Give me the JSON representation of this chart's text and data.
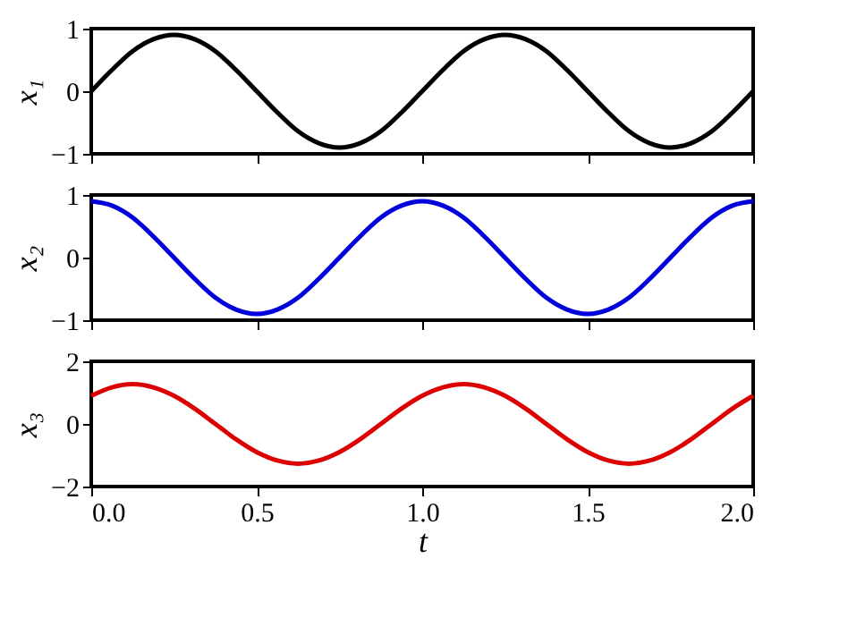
{
  "chart_data": [
    {
      "type": "line",
      "ylabel": "x₁",
      "xlim": [
        0,
        2
      ],
      "xticks": [
        0,
        0.5,
        1,
        1.5,
        2
      ],
      "ylim": [
        -1,
        1
      ],
      "yticks": [
        -1,
        0,
        1
      ],
      "tick_labels": "y",
      "grid": false,
      "x": [
        0,
        0.0625,
        0.125,
        0.1875,
        0.25,
        0.3125,
        0.375,
        0.4375,
        0.5,
        0.5625,
        0.625,
        0.6875,
        0.75,
        0.8125,
        0.875,
        0.9375,
        1,
        1.0625,
        1.125,
        1.1875,
        1.25,
        1.3125,
        1.375,
        1.4375,
        1.5,
        1.5625,
        1.625,
        1.6875,
        1.75,
        1.8125,
        1.875,
        1.9375,
        2
      ],
      "series": [
        {
          "color": "#000000",
          "values": [
            0,
            0.34,
            0.64,
            0.83,
            0.9,
            0.83,
            0.64,
            0.34,
            0,
            -0.34,
            -0.64,
            -0.83,
            -0.9,
            -0.83,
            -0.64,
            -0.34,
            0,
            0.34,
            0.64,
            0.83,
            0.9,
            0.83,
            0.64,
            0.34,
            0,
            -0.34,
            -0.64,
            -0.83,
            -0.9,
            -0.83,
            -0.64,
            -0.34,
            0
          ]
        }
      ]
    },
    {
      "type": "line",
      "ylabel": "x₂",
      "xlim": [
        0,
        2
      ],
      "xticks": [
        0,
        0.5,
        1,
        1.5,
        2
      ],
      "ylim": [
        -1,
        1
      ],
      "yticks": [
        -1,
        0,
        1
      ],
      "tick_labels": "y",
      "grid": false,
      "x": [
        0,
        0.0625,
        0.125,
        0.1875,
        0.25,
        0.3125,
        0.375,
        0.4375,
        0.5,
        0.5625,
        0.625,
        0.6875,
        0.75,
        0.8125,
        0.875,
        0.9375,
        1,
        1.0625,
        1.125,
        1.1875,
        1.25,
        1.3125,
        1.375,
        1.4375,
        1.5,
        1.5625,
        1.625,
        1.6875,
        1.75,
        1.8125,
        1.875,
        1.9375,
        2
      ],
      "series": [
        {
          "color": "#0000dd",
          "values": [
            0.9,
            0.83,
            0.64,
            0.34,
            0,
            -0.34,
            -0.64,
            -0.83,
            -0.9,
            -0.83,
            -0.64,
            -0.34,
            0,
            0.34,
            0.64,
            0.83,
            0.9,
            0.83,
            0.64,
            0.34,
            0,
            -0.34,
            -0.64,
            -0.83,
            -0.9,
            -0.83,
            -0.64,
            -0.34,
            0,
            0.34,
            0.64,
            0.83,
            0.9
          ]
        }
      ]
    },
    {
      "type": "line",
      "ylabel": "x₃",
      "xlabel": "t",
      "xlim": [
        0,
        2
      ],
      "xticks": [
        {
          "value": 0,
          "label": "0.0"
        },
        {
          "value": 0.5,
          "label": "0.5"
        },
        {
          "value": 1,
          "label": "1.0"
        },
        {
          "value": 1.5,
          "label": "1.5"
        },
        {
          "value": 2,
          "label": "2.0"
        }
      ],
      "ylim": [
        -2,
        2
      ],
      "yticks": [
        -2,
        0,
        2
      ],
      "grid": false,
      "x": [
        0,
        0.0625,
        0.125,
        0.1875,
        0.25,
        0.3125,
        0.375,
        0.4375,
        0.5,
        0.5625,
        0.625,
        0.6875,
        0.75,
        0.8125,
        0.875,
        0.9375,
        1,
        1.0625,
        1.125,
        1.1875,
        1.25,
        1.3125,
        1.375,
        1.4375,
        1.5,
        1.5625,
        1.625,
        1.6875,
        1.75,
        1.8125,
        1.875,
        1.9375,
        2
      ],
      "series": [
        {
          "color": "#dd0000",
          "values": [
            0.9,
            1.17,
            1.27,
            1.17,
            0.9,
            0.49,
            0,
            -0.49,
            -0.9,
            -1.17,
            -1.27,
            -1.17,
            -0.9,
            -0.49,
            0,
            0.49,
            0.9,
            1.17,
            1.27,
            1.17,
            0.9,
            0.49,
            0,
            -0.49,
            -0.9,
            -1.17,
            -1.27,
            -1.17,
            -0.9,
            -0.49,
            0,
            0.49,
            0.9
          ]
        }
      ]
    }
  ]
}
